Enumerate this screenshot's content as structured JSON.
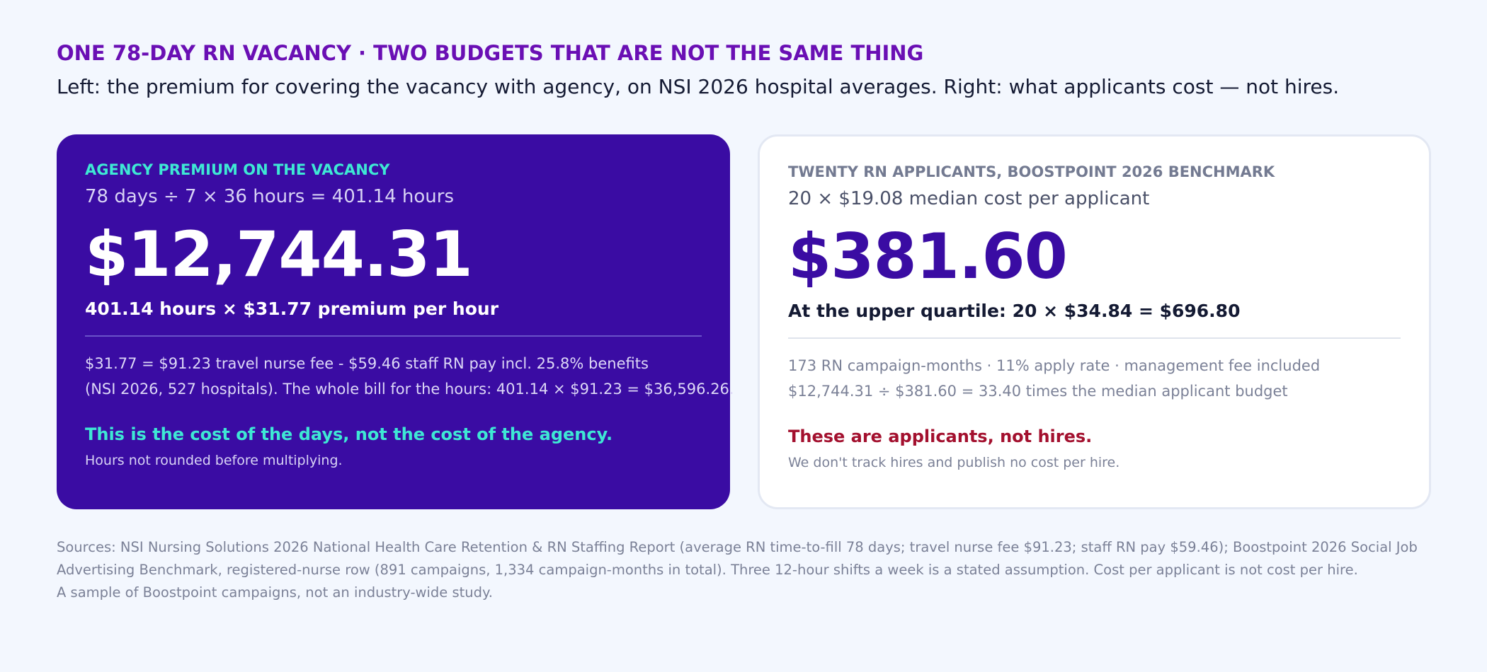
{
  "header": {
    "eyebrow": "ONE 78-DAY RN VACANCY · TWO BUDGETS THAT ARE NOT THE SAME THING",
    "subtitle": "Left: the premium for covering the vacancy with agency, on NSI 2026 hospital averages. Right: what applicants cost — not hires."
  },
  "left_card": {
    "label": "AGENCY PREMIUM ON THE VACANCY",
    "formula": "78 days ÷ 7 × 36 hours = 401.14 hours",
    "amount": "$12,744.31",
    "detail": "401.14 hours × $31.77 premium per hour",
    "notes": [
      "$31.77 = $91.23 travel nurse fee - $59.46 staff RN pay incl. 25.8% benefits",
      "(NSI 2026, 527 hospitals). The whole bill for the hours: 401.14 × $91.23 = $36,596.26."
    ],
    "callout": "This is the cost of the days, not the cost of the agency.",
    "small": "Hours not rounded before multiplying."
  },
  "right_card": {
    "label": "TWENTY RN APPLICANTS, BOOSTPOINT 2026 BENCHMARK",
    "formula": "20 × $19.08 median cost per applicant",
    "amount": "$381.60",
    "detail": "At the upper quartile: 20 × $34.84 = $696.80",
    "notes": [
      "173 RN campaign-months · 11% apply rate · management fee included",
      "$12,744.31 ÷ $381.60 = 33.40 times the median applicant budget"
    ],
    "callout": "These are applicants, not hires.",
    "small": "We don't track hires and publish no cost per hire."
  },
  "sources": [
    "Sources: NSI Nursing Solutions 2026 National Health Care Retention & RN Staffing Report (average RN time-to-fill 78 days; travel nurse fee $91.23; staff RN pay $59.46); Boostpoint 2026 Social Job",
    "Advertising Benchmark, registered-nurse row (891 campaigns, 1,334 campaign-months in total). Three 12-hour shifts a week is a stated assumption. Cost per applicant is not cost per hire.",
    "A sample of Boostpoint campaigns, not an industry-wide study."
  ],
  "colors": {
    "background": "#f3f7fe",
    "eyebrow": "#6a0fb4",
    "left_card_bg": "#3a0ca3",
    "teal_accent": "#3ee8d4",
    "right_amount": "#3a0ca3",
    "right_callout": "#a3102e"
  }
}
